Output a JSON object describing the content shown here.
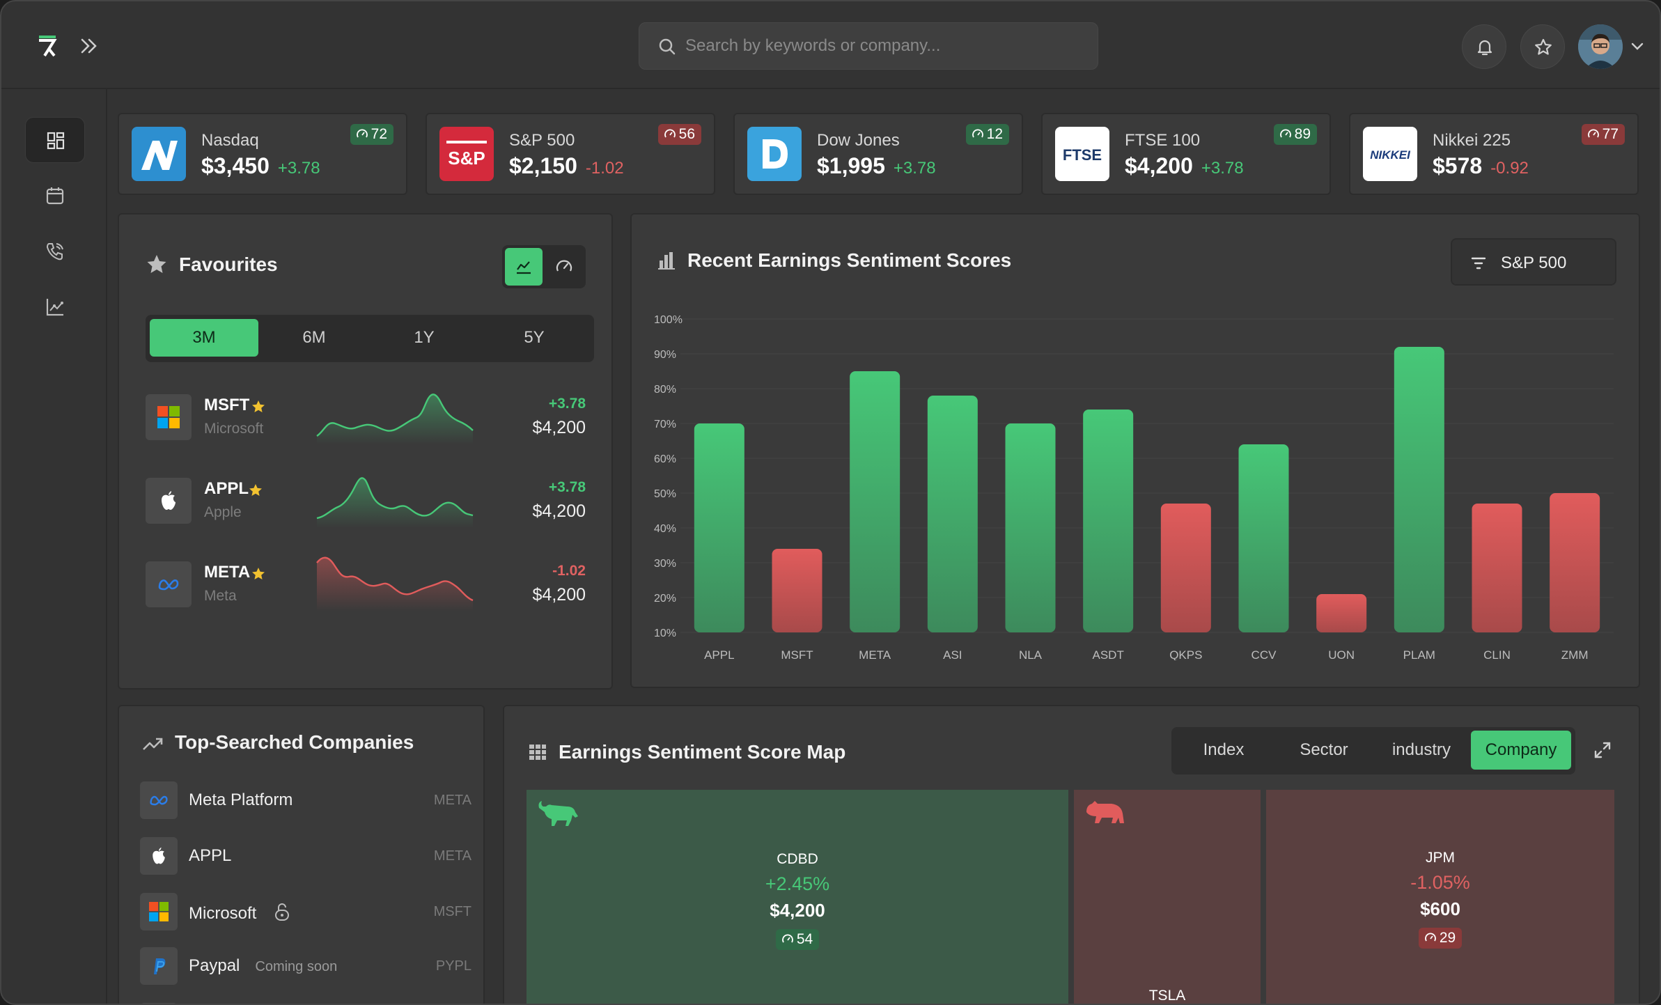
{
  "search": {
    "placeholder": "Search by keywords or company..."
  },
  "indices": [
    {
      "name": "Nasdaq",
      "value": "$3,450",
      "change": "+3.78",
      "score": "72"
    },
    {
      "name": "S&P 500",
      "value": "$2,150",
      "change": "-1.02",
      "score": "56",
      "logo_text": "S&P"
    },
    {
      "name": "Dow Jones",
      "value": "$1,995",
      "change": "+3.78",
      "score": "12"
    },
    {
      "name": "FTSE 100",
      "value": "$4,200",
      "change": "+3.78",
      "score": "89",
      "logo_text": "FTSE"
    },
    {
      "name": "Nikkei 225",
      "value": "$578",
      "change": "-0.92",
      "score": "77",
      "logo_text": "NIKKEI"
    }
  ],
  "favourites": {
    "title": "Favourites",
    "periods": [
      "3M",
      "6M",
      "1Y",
      "5Y"
    ],
    "active_period": "3M",
    "items": [
      {
        "ticker": "MSFT",
        "name": "Microsoft",
        "change": "+3.78",
        "price": "$4,200"
      },
      {
        "ticker": "APPL",
        "name": "Apple",
        "change": "+3.78",
        "price": "$4,200"
      },
      {
        "ticker": "META",
        "name": "Meta",
        "change": "-1.02",
        "price": "$4,200"
      }
    ]
  },
  "sentiment": {
    "title": "Recent Earnings Sentiment Scores",
    "filter_label": "S&P 500"
  },
  "chart_data": {
    "type": "bar",
    "title": "Recent Earnings Sentiment Scores",
    "categories": [
      "APPL",
      "MSFT",
      "META",
      "ASI",
      "NLA",
      "ASDT",
      "QKPS",
      "CCV",
      "UON",
      "PLAM",
      "CLIN",
      "ZMM"
    ],
    "values": [
      70,
      34,
      85,
      78,
      70,
      74,
      47,
      64,
      21,
      92,
      47,
      50
    ],
    "colors_by_sign": [
      "pos",
      "neg",
      "pos",
      "pos",
      "pos",
      "pos",
      "neg",
      "pos",
      "neg",
      "pos",
      "neg",
      "neg"
    ],
    "ylim": [
      10,
      100
    ],
    "yticks": [
      "10%",
      "20%",
      "30%",
      "40%",
      "50%",
      "60%",
      "70%",
      "80%",
      "90%",
      "100%"
    ],
    "grid": true,
    "colors": {
      "positive": "#47c878",
      "negative": "#e15c5c"
    }
  },
  "top_searched": {
    "title": "Top-Searched Companies",
    "items": [
      {
        "name": "Meta Platform",
        "ticker": "META"
      },
      {
        "name": "APPL",
        "ticker": "META"
      },
      {
        "name": "Microsoft",
        "ticker": "MSFT"
      },
      {
        "name": "Paypal",
        "ticker": "PYPL",
        "note": "Coming soon"
      }
    ]
  },
  "score_map": {
    "title": "Earnings Sentiment Score Map",
    "views": [
      "Index",
      "Sector",
      "industry",
      "Company"
    ],
    "active_view": "Company",
    "tiles": [
      {
        "ticker": "CDBD",
        "change": "+2.45%",
        "price": "$4,200",
        "score": "54"
      },
      {
        "ticker": "TSLA"
      },
      {
        "ticker": "JPM",
        "change": "-1.05%",
        "price": "$600",
        "score": "29"
      }
    ]
  },
  "colors": {
    "accent": "#47c878",
    "negative": "#e15c5c",
    "background": "#333333",
    "card": "#3a3a3a"
  }
}
